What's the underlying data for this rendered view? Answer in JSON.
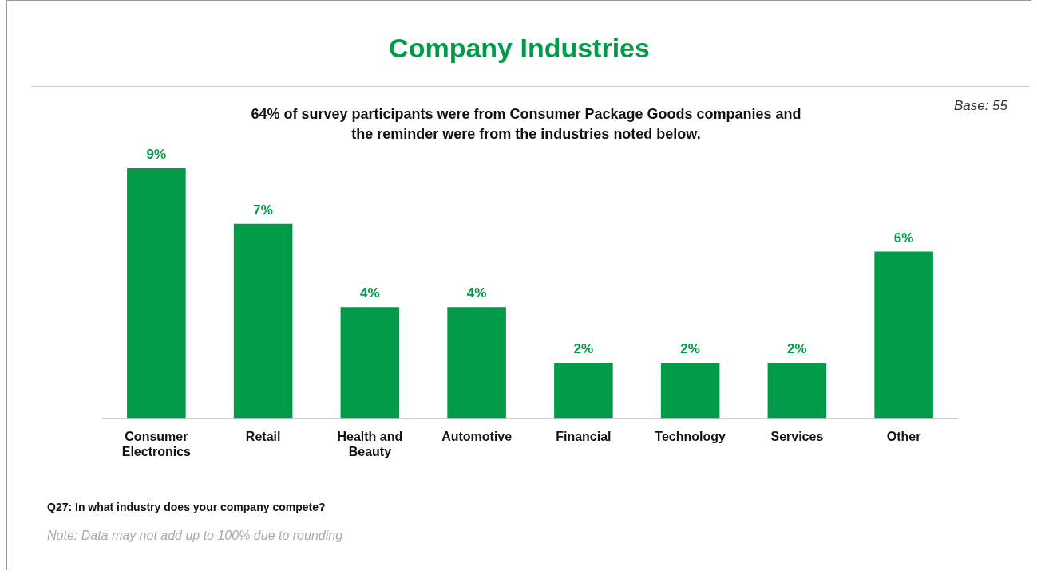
{
  "chart_data": {
    "type": "bar",
    "title": "Company Industries",
    "subtitle": "64% of survey participants were from Consumer Package Goods companies and the reminder were from the industries noted below.",
    "categories": [
      "Consumer Electronics",
      "Retail",
      "Health and Beauty",
      "Automotive",
      "Financial",
      "Technology",
      "Services",
      "Other"
    ],
    "values": [
      9,
      7,
      4,
      4,
      2,
      2,
      2,
      6
    ],
    "value_labels": [
      "9%",
      "7%",
      "4%",
      "4%",
      "2%",
      "2%",
      "2%",
      "6%"
    ],
    "color": "#009a49",
    "tick_labels": "x",
    "grid": false,
    "legend": false,
    "annotations": [
      "Base: 55",
      "Q27: In what industry does your company compete?",
      "Note: Data may not add up to 100% due to rounding"
    ]
  }
}
